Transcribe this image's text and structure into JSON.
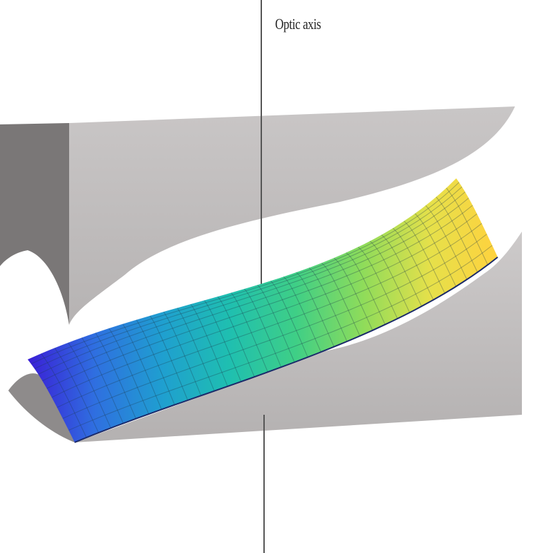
{
  "figure": {
    "axis_label": "Optic axis",
    "colors": {
      "background": "#ffffff",
      "upper_sheet_face": "#bdbaba",
      "upper_sheet_side": "#7a7777",
      "lower_sheet_face": "#bfbcbc",
      "lower_sheet_side": "#8e8b8b",
      "axis_line": "#555555",
      "surface_colormap": [
        "#3a1fd6",
        "#2f6fe0",
        "#1f9fd0",
        "#1fbfb0",
        "#3fcf86",
        "#8fdc5a",
        "#e6e04a",
        "#ffd23e"
      ],
      "mesh_lines": "#1e3a4a"
    }
  }
}
